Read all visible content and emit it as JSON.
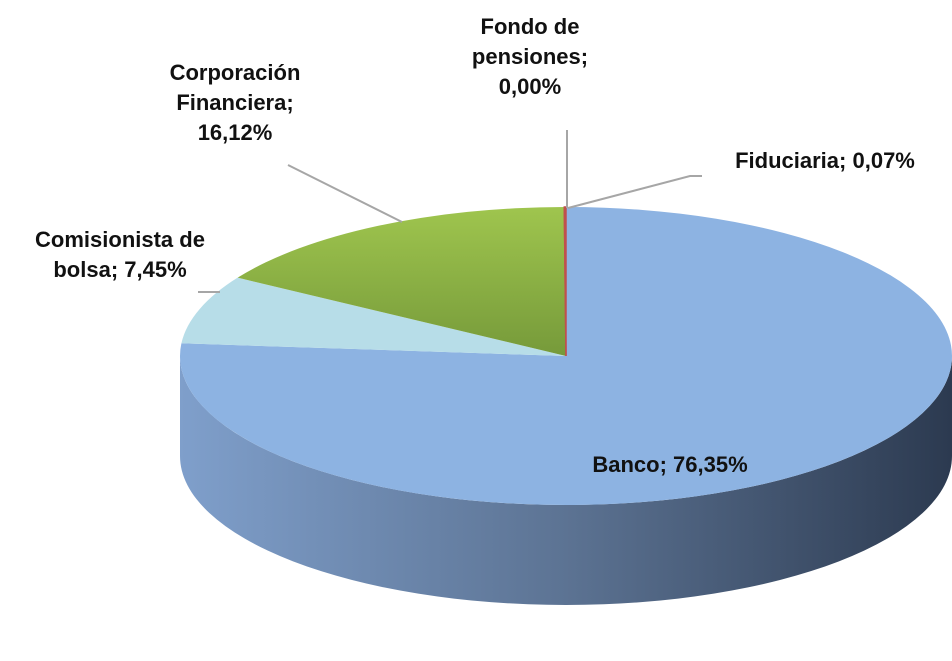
{
  "chart_data": {
    "type": "pie3d",
    "categories": [
      "Banco",
      "Comisionista de bolsa",
      "Corporación Financiera",
      "Fondo de pensiones",
      "Fiduciaria"
    ],
    "values": [
      76.35,
      7.45,
      16.12,
      0.0,
      0.07
    ],
    "value_labels": [
      "76,35%",
      "7,45%",
      "16,12%",
      "0,00%",
      "0,07%"
    ],
    "label_separator": "; ",
    "colors": [
      "#8db3e2",
      "#b7dde8",
      "#9bbb59",
      "#c0504d",
      "#c0504d"
    ]
  }
}
